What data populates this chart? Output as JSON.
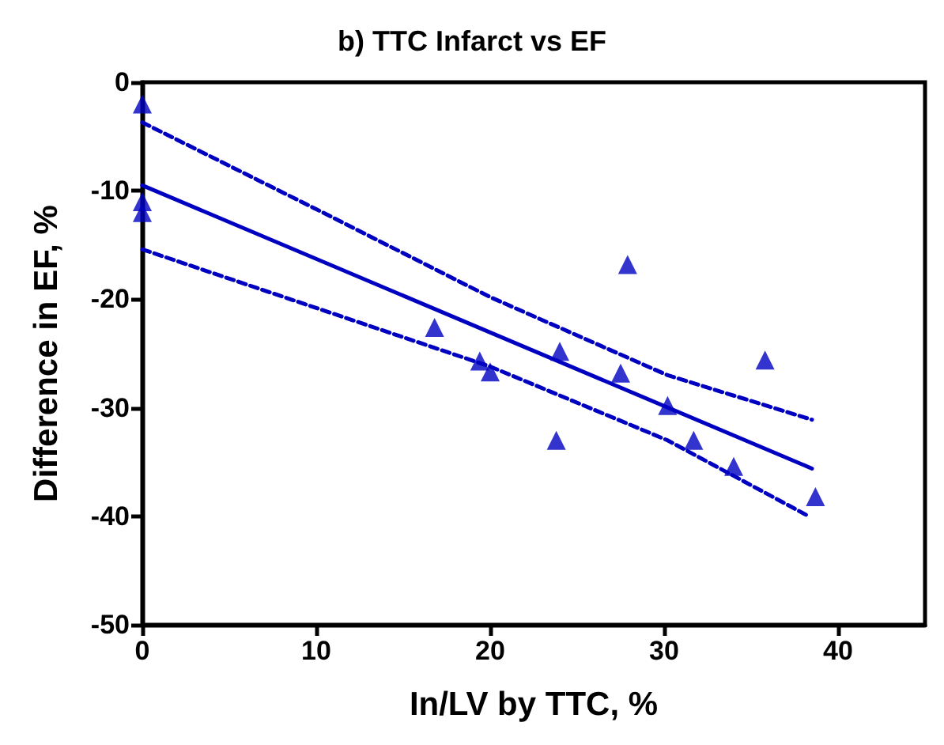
{
  "chart_data": {
    "type": "scatter",
    "title": "b) TTC Infarct vs EF",
    "xlabel": "In/LV by TTC, %",
    "ylabel": "Difference in EF, %",
    "xlim": [
      0,
      45
    ],
    "xticks": [
      0,
      10,
      20,
      30,
      40
    ],
    "ylim": [
      -50,
      0
    ],
    "yticks": [
      -50,
      -40,
      -30,
      -20,
      -10,
      0
    ],
    "grid": false,
    "marker": "triangle",
    "series": [
      {
        "color": "#0000c0",
        "x": [
          0,
          0,
          0,
          16.8,
          19.4,
          20,
          23.8,
          24,
          27.9,
          27.5,
          30.2,
          31.7,
          34,
          35.8,
          38.7
        ],
        "values": [
          -2,
          -11,
          -12,
          -22.6,
          -25.7,
          -26.7,
          -33,
          -24.8,
          -16.8,
          -26.8,
          -29.8,
          -33,
          -35.4,
          -25.6,
          -38.2
        ]
      },
      {
        "type": "line",
        "color": "#0000c0",
        "marker": "none",
        "line_style": "solid",
        "x": [
          0,
          38.5
        ],
        "values": [
          -9.5,
          -35.6
        ]
      },
      {
        "type": "line",
        "color": "#0000c0",
        "marker": "none",
        "line_style": "dashed",
        "x": [
          0,
          10,
          20,
          30.2,
          38.5
        ],
        "values": [
          -3.7,
          -11.7,
          -19.8,
          -27,
          -31.1
        ]
      },
      {
        "type": "line",
        "color": "#0000c0",
        "marker": "none",
        "line_style": "dashed",
        "x": [
          0,
          10,
          20,
          30.2,
          38.2
        ],
        "values": [
          -15.4,
          -20.8,
          -26.2,
          -33,
          -39.9
        ]
      }
    ]
  }
}
